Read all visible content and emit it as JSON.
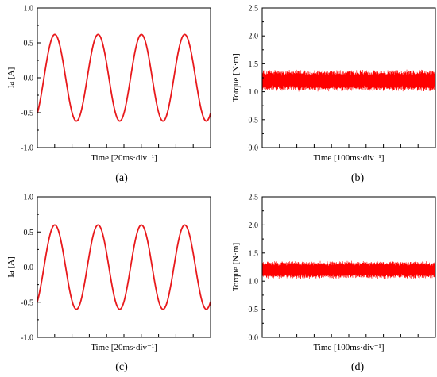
{
  "chart_data": [
    {
      "type": "line",
      "panel": "(a)",
      "xlabel": "Time [20ms·div⁻¹]",
      "ylabel": "Ia [A]",
      "ylim": [
        -1.0,
        1.0
      ],
      "yticks": [
        -1.0,
        -0.5,
        0.0,
        0.5,
        1.0
      ],
      "ytick_labels": [
        "-1.0",
        "-0.5",
        "0.0",
        "0.5",
        "1.0"
      ],
      "xlim": [
        0,
        10
      ],
      "xticks": [
        0,
        1,
        2,
        3,
        4,
        5,
        6,
        7,
        8,
        9,
        10
      ],
      "xtick_labels_shown": false,
      "series": [
        {
          "color": "#e8191c",
          "amplitude": 0.62,
          "cycles_in_window": 4.0,
          "phase_deg": -55,
          "waveform": "sinusoid"
        }
      ]
    },
    {
      "type": "line",
      "panel": "(b)",
      "xlabel": "Time [100ms·div⁻¹]",
      "ylabel": "Torque [N·m]",
      "ylim": [
        0.0,
        2.5
      ],
      "yticks": [
        0.0,
        0.5,
        1.0,
        1.5,
        2.0,
        2.5
      ],
      "ytick_labels": [
        "0.0",
        "0.5",
        "1.0",
        "1.5",
        "2.0",
        "2.5"
      ],
      "xlim": [
        0,
        10
      ],
      "xticks": [
        0,
        1,
        2,
        3,
        4,
        5,
        6,
        7,
        8,
        9,
        10
      ],
      "xtick_labels_shown": false,
      "series": [
        {
          "color": "#ff0000",
          "mean": 1.2,
          "min": 1.0,
          "max": 1.4,
          "waveform": "dense ripple band"
        }
      ]
    },
    {
      "type": "line",
      "panel": "(c)",
      "xlabel": "Time [20ms·div⁻¹]",
      "ylabel": "Ia [A]",
      "ylim": [
        -1.0,
        1.0
      ],
      "yticks": [
        -1.0,
        -0.5,
        0.0,
        0.5,
        1.0
      ],
      "ytick_labels": [
        "-1.0",
        "-0.5",
        "0.0",
        "0.5",
        "1.0"
      ],
      "xlim": [
        0,
        10
      ],
      "xticks": [
        0,
        1,
        2,
        3,
        4,
        5,
        6,
        7,
        8,
        9,
        10
      ],
      "xtick_labels_shown": false,
      "series": [
        {
          "color": "#e8191c",
          "amplitude": 0.6,
          "cycles_in_window": 4.0,
          "phase_deg": -55,
          "waveform": "sinusoid"
        }
      ]
    },
    {
      "type": "line",
      "panel": "(d)",
      "xlabel": "Time [100ms·div⁻¹]",
      "ylabel": "Torque [N·m]",
      "ylim": [
        0.0,
        2.5
      ],
      "yticks": [
        0.0,
        0.5,
        1.0,
        1.5,
        2.0,
        2.5
      ],
      "ytick_labels": [
        "0.0",
        "0.5",
        "1.0",
        "1.5",
        "2.0",
        "2.5"
      ],
      "xlim": [
        0,
        10
      ],
      "xticks": [
        0,
        1,
        2,
        3,
        4,
        5,
        6,
        7,
        8,
        9,
        10
      ],
      "xtick_labels_shown": false,
      "series": [
        {
          "color": "#ff0000",
          "mean": 1.2,
          "min": 1.04,
          "max": 1.37,
          "waveform": "dense ripple band"
        }
      ]
    }
  ],
  "panel_labels": {
    "a": "(a)",
    "b": "(b)",
    "c": "(c)",
    "d": "(d)"
  }
}
